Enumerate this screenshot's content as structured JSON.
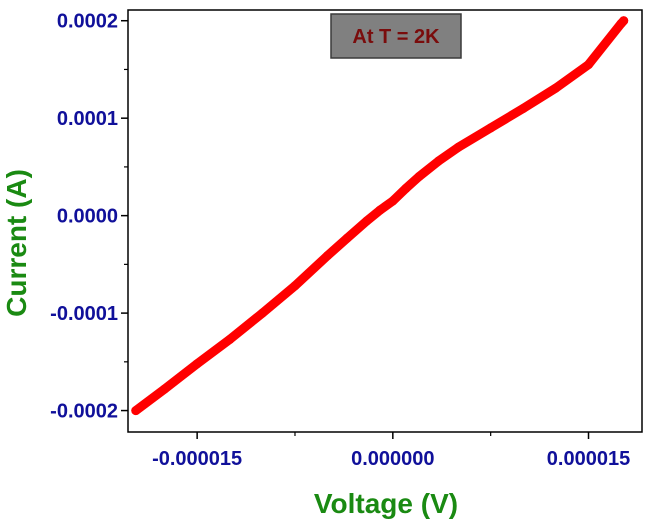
{
  "chart_data": {
    "type": "line",
    "xlabel": "Voltage (V)",
    "ylabel": "Current (A)",
    "annotation": "At T = 2K",
    "xlim": [
      -2.03e-05,
      1.91e-05
    ],
    "ylim": [
      -0.000222,
      0.000211
    ],
    "x_ticks": [
      {
        "value": -1.5e-05,
        "label": "-0.000015"
      },
      {
        "value": 0.0,
        "label": "0.000000"
      },
      {
        "value": 1.5e-05,
        "label": "0.000015"
      }
    ],
    "y_ticks": [
      {
        "value": 0.0002,
        "label": "0.0002"
      },
      {
        "value": 0.0001,
        "label": "0.0001"
      },
      {
        "value": 0.0,
        "label": "0.0000"
      },
      {
        "value": -0.0001,
        "label": "-0.0001"
      },
      {
        "value": -0.0002,
        "label": "-0.0002"
      }
    ],
    "series": [
      {
        "color": "#ff0000",
        "x": [
          -1.97e-05,
          -1.75e-05,
          -1.5e-05,
          -1.25e-05,
          -1e-05,
          -7.5e-06,
          -5e-06,
          -3.5e-06,
          -2e-06,
          -1e-06,
          0.0,
          1e-06,
          2e-06,
          3.5e-06,
          5e-06,
          7.5e-06,
          1e-05,
          1.25e-05,
          1.5e-05,
          1.75e-05,
          1.77e-05
        ],
        "y": [
          -0.0002,
          -0.000178,
          -0.000152,
          -0.000127,
          -0.0001,
          -7.2e-05,
          -4.1e-05,
          -2.3e-05,
          -5.5e-06,
          5.5e-06,
          1.5e-05,
          2.8e-05,
          4e-05,
          5.6e-05,
          7e-05,
          9e-05,
          0.00011,
          0.000131,
          0.000155,
          0.000197,
          0.0002
        ]
      }
    ],
    "grid": false,
    "legend": "none"
  },
  "colors": {
    "series": "#ff0000",
    "tick_labels": "#10109a",
    "axis_titles": "#1a8a12",
    "annotation_text": "#7a0c0c",
    "annotation_box": "#808080"
  }
}
